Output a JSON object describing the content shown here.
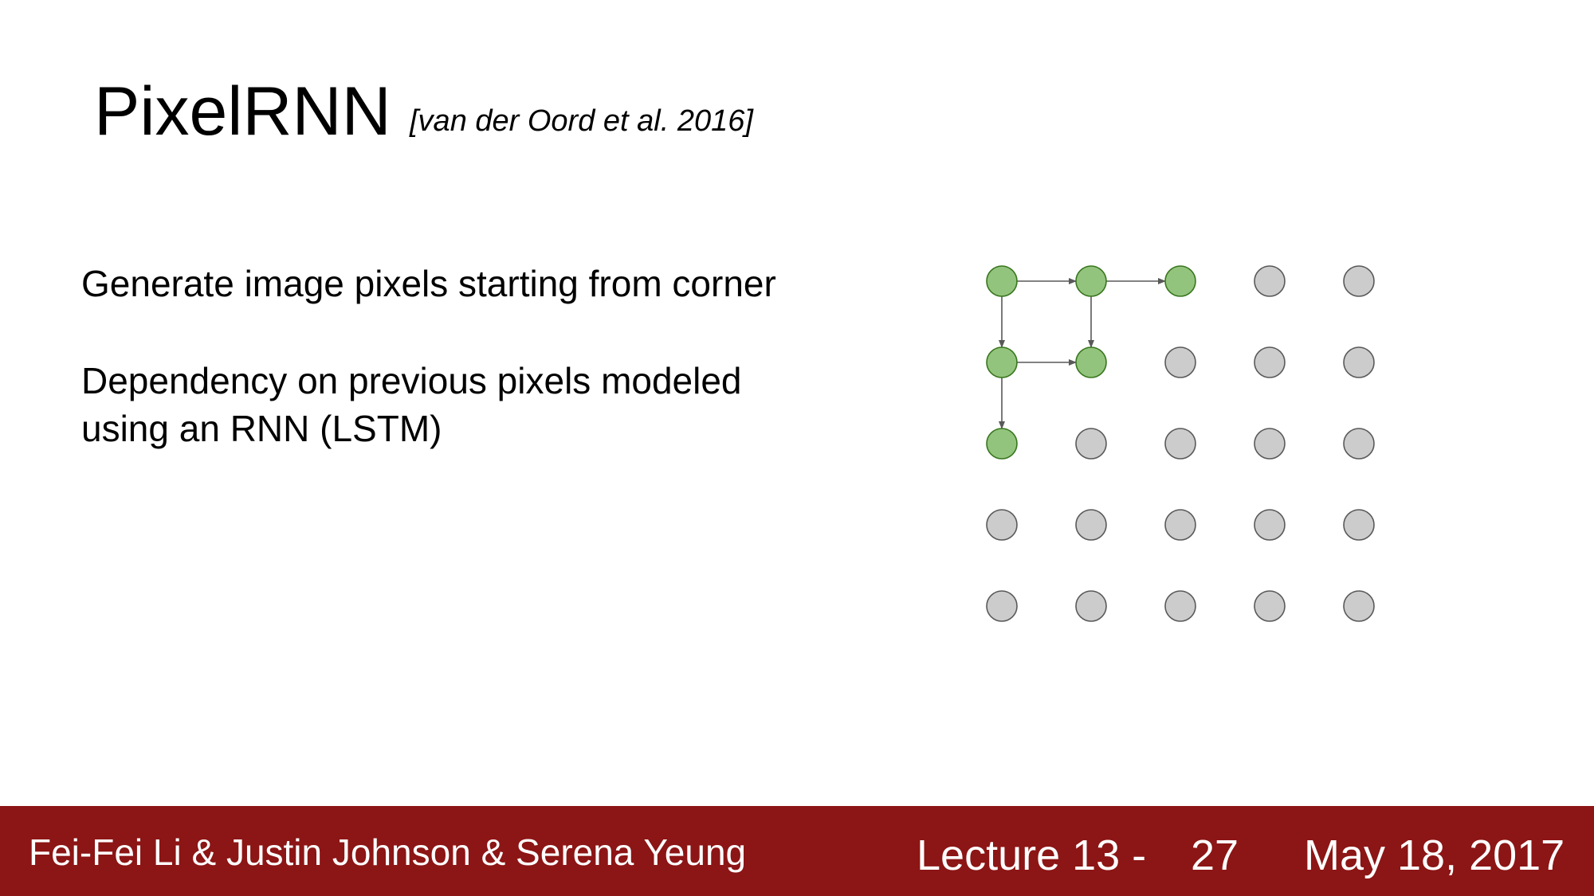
{
  "slide": {
    "title": "PixelRNN",
    "citation": "[van der Oord et al. 2016]",
    "bullets": [
      "Generate image pixels starting from corner",
      "Dependency on previous pixels modeled",
      "using an RNN (LSTM)"
    ]
  },
  "diagram": {
    "rows": 5,
    "cols": 5,
    "generated_cells": [
      [
        0,
        0
      ],
      [
        0,
        1
      ],
      [
        0,
        2
      ],
      [
        1,
        0
      ],
      [
        1,
        1
      ],
      [
        2,
        0
      ]
    ],
    "arrows": [
      {
        "from": [
          0,
          0
        ],
        "to": [
          0,
          1
        ]
      },
      {
        "from": [
          0,
          1
        ],
        "to": [
          0,
          2
        ]
      },
      {
        "from": [
          0,
          0
        ],
        "to": [
          1,
          0
        ]
      },
      {
        "from": [
          0,
          1
        ],
        "to": [
          1,
          1
        ]
      },
      {
        "from": [
          1,
          0
        ],
        "to": [
          1,
          1
        ]
      },
      {
        "from": [
          1,
          0
        ],
        "to": [
          2,
          0
        ]
      }
    ],
    "colors": {
      "generated_fill": "#93c47d",
      "generated_stroke": "#38761d",
      "pending_fill": "#cccccc",
      "pending_stroke": "#595959",
      "arrow": "#595959"
    }
  },
  "footer": {
    "authors": "Fei-Fei Li & Justin Johnson & Serena Yeung",
    "lecture": "Lecture 13 -",
    "page": "27",
    "date": "May 18, 2017",
    "color": "#8c1515"
  }
}
